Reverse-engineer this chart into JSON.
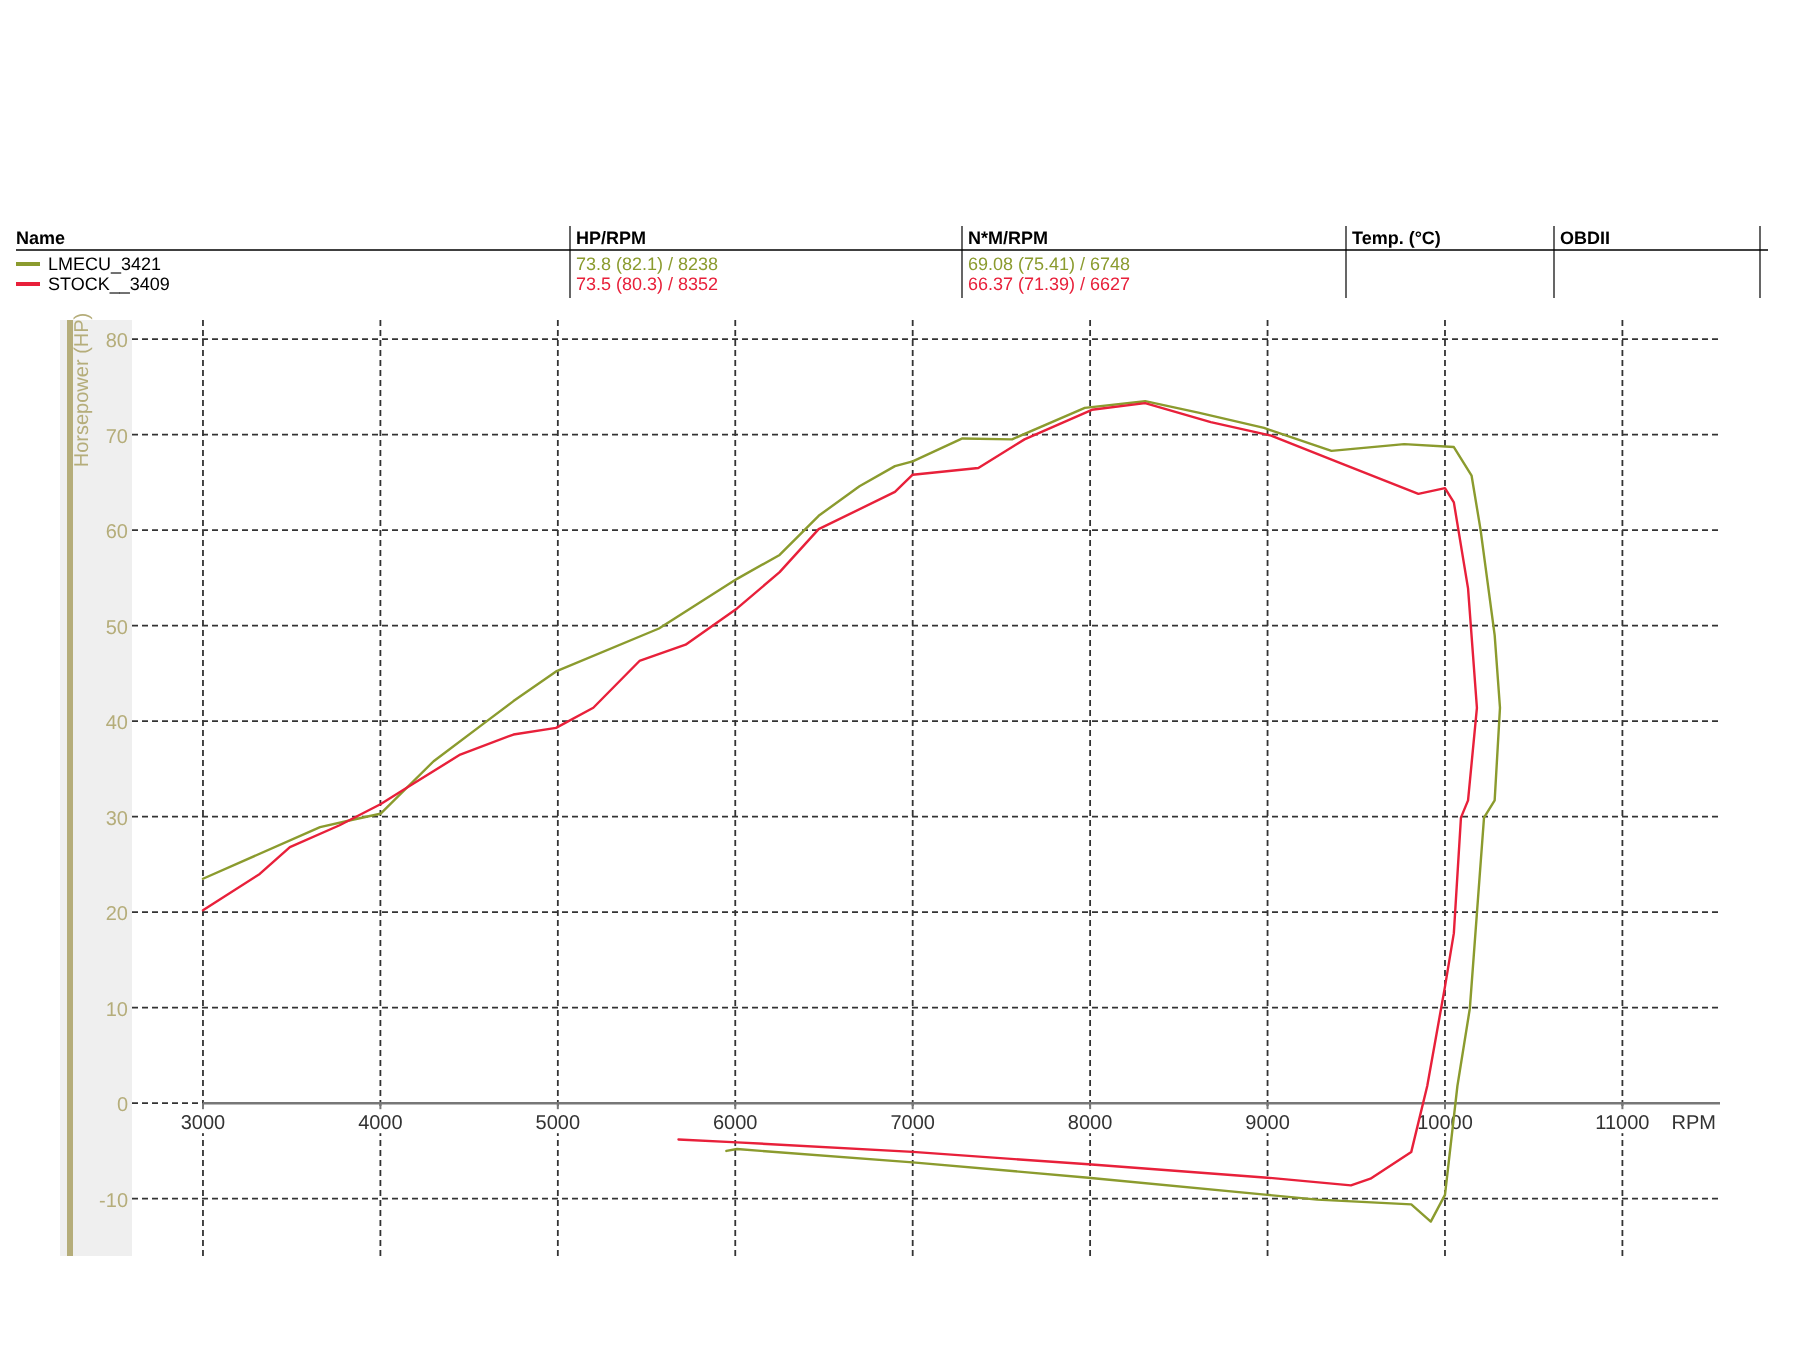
{
  "chart_data": {
    "type": "line",
    "xlabel": "RPM",
    "ylabel": "Horsepower (HP)",
    "annotations": [
      "Name",
      "HP/RPM",
      "N*M/RPM",
      "Temp. (°C)",
      "OBDII",
      "73.8 (82.1) / 8238",
      "69.08 (75.41) / 6748",
      "73.5 (80.3) / 8352",
      "66.37 (71.39) / 6627"
    ],
    "xlim": [
      2600,
      11550
    ],
    "ylim": [
      -16,
      82
    ],
    "xticks": [
      3000,
      4000,
      5000,
      6000,
      7000,
      8000,
      9000,
      10000,
      11000
    ],
    "yticks": [
      -10,
      0,
      10,
      20,
      30,
      40,
      50,
      60,
      70,
      80
    ],
    "grid": true,
    "legend": "top",
    "line_style": "solid",
    "marker": "none",
    "series": [
      {
        "name": "LMECU_3421",
        "color": "#8b9b2e",
        "x": [
          3000,
          3660,
          3850,
          4000,
          4300,
          4600,
          4750,
          4990,
          5570,
          6010,
          6250,
          6470,
          6700,
          6900,
          7000,
          7280,
          7560,
          7970,
          8310,
          8610,
          8980,
          9360,
          9770,
          10050,
          10150,
          10200,
          10280,
          10310,
          10280,
          10220,
          10180,
          10140,
          10070,
          10000,
          9920,
          9810,
          9280,
          9000,
          7990,
          7000,
          6010,
          5950
        ],
        "values": [
          23.5,
          28.9,
          29.7,
          30.3,
          35.8,
          40,
          42.1,
          45.2,
          49.7,
          54.9,
          57.4,
          61.5,
          64.6,
          66.7,
          67.2,
          69.6,
          69.5,
          72.8,
          73.5,
          72.3,
          70.7,
          68.3,
          69,
          68.7,
          65.7,
          60.1,
          49,
          41.4,
          31.7,
          29.9,
          19.9,
          9.9,
          1.8,
          -9.6,
          -12.4,
          -10.6,
          -10.1,
          -9.6,
          -7.8,
          -6.2,
          -4.8,
          -5
        ]
      },
      {
        "name": "STOCK__3409",
        "color": "#e8203a",
        "x": [
          3000,
          3320,
          3490,
          3770,
          4000,
          4180,
          4450,
          4750,
          4990,
          5200,
          5460,
          5720,
          6010,
          6250,
          6470,
          6900,
          7000,
          7370,
          7630,
          8010,
          8310,
          8680,
          9020,
          9400,
          9850,
          10000,
          10050,
          10130,
          10180,
          10130,
          10090,
          10050,
          10000,
          9900,
          9810,
          9580,
          9470,
          9000,
          7990,
          7000,
          6010,
          5680
        ],
        "values": [
          20.2,
          24,
          26.8,
          29.1,
          31.3,
          33.4,
          36.5,
          38.6,
          39.3,
          41.4,
          46.3,
          48,
          51.8,
          55.6,
          60.1,
          64,
          65.8,
          66.5,
          69.5,
          72.6,
          73.3,
          71.3,
          69.9,
          67.1,
          63.8,
          64.4,
          62.9,
          53.9,
          41.4,
          31.7,
          29.9,
          17.8,
          12.2,
          1.8,
          -5.1,
          -7.9,
          -8.6,
          -7.8,
          -6.4,
          -5.1,
          -4.1,
          -3.8
        ]
      }
    ]
  }
}
